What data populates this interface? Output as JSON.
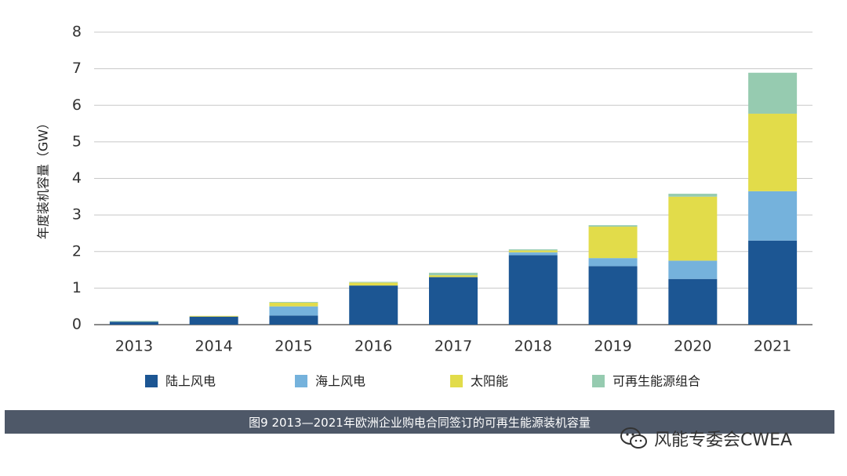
{
  "chart_data": {
    "type": "bar",
    "stacked": true,
    "categories": [
      "2013",
      "2014",
      "2015",
      "2016",
      "2017",
      "2018",
      "2019",
      "2020",
      "2021"
    ],
    "series": [
      {
        "name": "陆上风电",
        "color": "#1c5693",
        "values": [
          0.08,
          0.22,
          0.25,
          1.07,
          1.3,
          1.9,
          1.6,
          1.25,
          2.3
        ]
      },
      {
        "name": "海上风电",
        "color": "#75b2dc",
        "values": [
          0.0,
          0.0,
          0.25,
          0.0,
          0.0,
          0.08,
          0.22,
          0.5,
          1.35
        ]
      },
      {
        "name": "太阳能",
        "color": "#e2dc4a",
        "values": [
          0.0,
          0.02,
          0.1,
          0.08,
          0.05,
          0.05,
          0.86,
          1.75,
          2.12
        ]
      },
      {
        "name": "可再生能源组合",
        "color": "#96cbb0",
        "values": [
          0.02,
          0.0,
          0.02,
          0.02,
          0.07,
          0.03,
          0.04,
          0.08,
          1.12
        ]
      }
    ],
    "ylabel": "年度装机容量（GW）",
    "ylim": [
      0,
      8
    ],
    "yticks": [
      "0",
      "1",
      "2",
      "3",
      "4",
      "5",
      "6",
      "7",
      "8"
    ],
    "grid": true,
    "legend_position": "bottom"
  },
  "caption": "图9 2013—2021年欧洲企业购电合同签订的可再生能源装机容量",
  "watermark": {
    "text": "风能专委会CWEA",
    "icon": "wechat-icon"
  }
}
